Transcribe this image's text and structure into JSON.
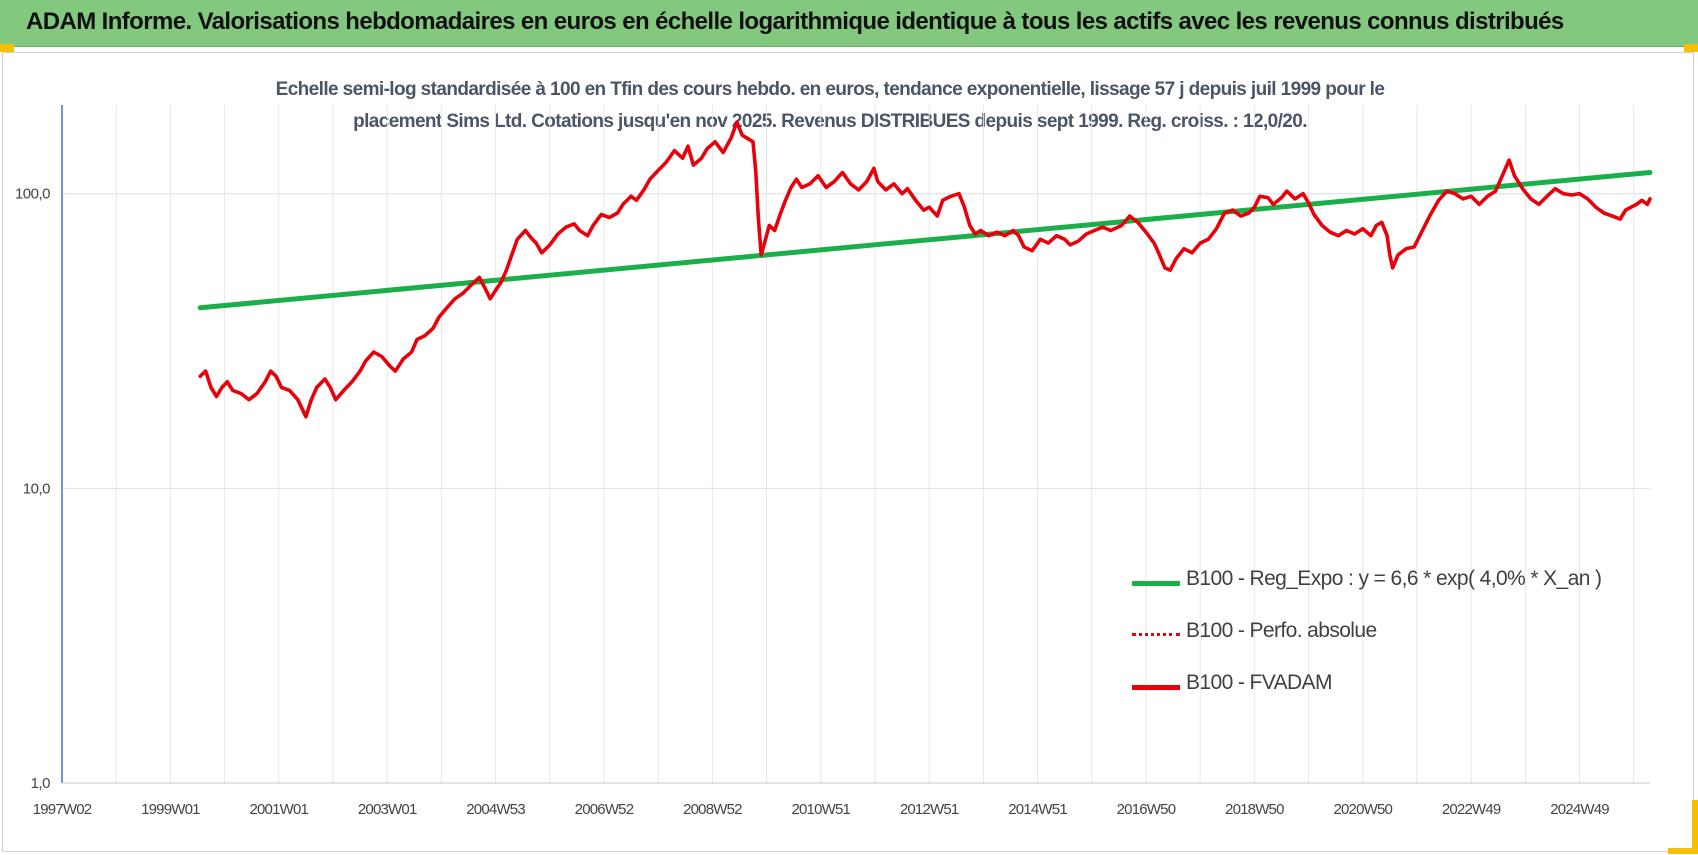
{
  "header": {
    "title": "ADAM Informe. Valorisations hebdomadaires en euros en échelle logarithmique identique à tous les actifs avec les revenus connus distribués"
  },
  "chart_data": {
    "type": "line",
    "title_line1": "Echelle semi-log standardisée à 100 en Tfin des cours hebdo. en euros, tendance exponentielle, lissage 57 j depuis juil 1999 pour le",
    "title_line2": "placement Sims Ltd. Cotations jusqu'en nov 2025. Revenus DISTRIBUES depuis sept 1999. Reg. croiss. : 12,0/20.",
    "y_scale": "log",
    "ylim": [
      1,
      200
    ],
    "xlim": [
      1997.0,
      2026.3
    ],
    "grid": true,
    "legend_position": "right",
    "y_ticks": [
      {
        "value": 1,
        "label": "1,0"
      },
      {
        "value": 10,
        "label": "10,0"
      },
      {
        "value": 100,
        "label": "100,0"
      }
    ],
    "x_ticks": [
      {
        "value": 1997.0,
        "label": "1997W02"
      },
      {
        "value": 1999.0,
        "label": "1999W01"
      },
      {
        "value": 2001.0,
        "label": "2001W01"
      },
      {
        "value": 2003.0,
        "label": "2003W01"
      },
      {
        "value": 2005.0,
        "label": "2004W53"
      },
      {
        "value": 2007.0,
        "label": "2006W52"
      },
      {
        "value": 2009.0,
        "label": "2008W52"
      },
      {
        "value": 2011.0,
        "label": "2010W51"
      },
      {
        "value": 2013.0,
        "label": "2012W51"
      },
      {
        "value": 2015.0,
        "label": "2014W51"
      },
      {
        "value": 2017.0,
        "label": "2016W50"
      },
      {
        "value": 2019.0,
        "label": "2018W50"
      },
      {
        "value": 2021.0,
        "label": "2020W50"
      },
      {
        "value": 2023.0,
        "label": "2022W49"
      },
      {
        "value": 2025.0,
        "label": "2024W49"
      }
    ],
    "series": [
      {
        "name": "B100 - Reg_Expo : y = 6,6 * exp( 4,0% *  X_an )",
        "color": "#1aaf4a",
        "style": "solid",
        "points": [
          [
            1999.55,
            41
          ],
          [
            2026.3,
            118
          ]
        ]
      },
      {
        "name": "B100 - Perfo. absolue",
        "color": "#e8000a",
        "style": "dotted",
        "points": []
      },
      {
        "name": "B100 - FVADAM",
        "color": "#e8000a",
        "style": "solid",
        "points": [
          [
            1999.55,
            24
          ],
          [
            1999.65,
            25
          ],
          [
            1999.75,
            22
          ],
          [
            1999.85,
            20.5
          ],
          [
            1999.95,
            22
          ],
          [
            2000.05,
            23
          ],
          [
            2000.15,
            21.5
          ],
          [
            2000.3,
            21
          ],
          [
            2000.45,
            20
          ],
          [
            2000.6,
            21
          ],
          [
            2000.75,
            23
          ],
          [
            2000.85,
            25
          ],
          [
            2000.95,
            24
          ],
          [
            2001.05,
            22
          ],
          [
            2001.2,
            21.5
          ],
          [
            2001.35,
            20
          ],
          [
            2001.5,
            17.5
          ],
          [
            2001.6,
            20
          ],
          [
            2001.7,
            22
          ],
          [
            2001.85,
            23.5
          ],
          [
            2001.95,
            22
          ],
          [
            2002.05,
            20
          ],
          [
            2002.2,
            21.5
          ],
          [
            2002.35,
            23
          ],
          [
            2002.5,
            25
          ],
          [
            2002.6,
            27
          ],
          [
            2002.75,
            29
          ],
          [
            2002.9,
            28
          ],
          [
            2003.05,
            26
          ],
          [
            2003.15,
            25
          ],
          [
            2003.3,
            27.5
          ],
          [
            2003.45,
            29
          ],
          [
            2003.55,
            32
          ],
          [
            2003.7,
            33
          ],
          [
            2003.85,
            35
          ],
          [
            2003.95,
            38
          ],
          [
            2004.1,
            41
          ],
          [
            2004.25,
            44
          ],
          [
            2004.4,
            46
          ],
          [
            2004.55,
            49
          ],
          [
            2004.7,
            52
          ],
          [
            2004.8,
            48
          ],
          [
            2004.9,
            44
          ],
          [
            2005.0,
            47
          ],
          [
            2005.1,
            50
          ],
          [
            2005.2,
            55
          ],
          [
            2005.3,
            62
          ],
          [
            2005.4,
            70
          ],
          [
            2005.55,
            75
          ],
          [
            2005.65,
            71
          ],
          [
            2005.75,
            68
          ],
          [
            2005.85,
            63
          ],
          [
            2006.0,
            67
          ],
          [
            2006.15,
            73
          ],
          [
            2006.3,
            77
          ],
          [
            2006.45,
            79
          ],
          [
            2006.55,
            75
          ],
          [
            2006.7,
            72
          ],
          [
            2006.8,
            78
          ],
          [
            2006.95,
            85
          ],
          [
            2007.1,
            83
          ],
          [
            2007.25,
            86
          ],
          [
            2007.35,
            92
          ],
          [
            2007.5,
            98
          ],
          [
            2007.6,
            95
          ],
          [
            2007.75,
            104
          ],
          [
            2007.85,
            112
          ],
          [
            2008.0,
            120
          ],
          [
            2008.15,
            128
          ],
          [
            2008.3,
            140
          ],
          [
            2008.45,
            132
          ],
          [
            2008.55,
            145
          ],
          [
            2008.65,
            125
          ],
          [
            2008.8,
            132
          ],
          [
            2008.9,
            142
          ],
          [
            2009.05,
            150
          ],
          [
            2009.2,
            138
          ],
          [
            2009.35,
            155
          ],
          [
            2009.45,
            175
          ],
          [
            2009.55,
            158
          ],
          [
            2009.75,
            150
          ],
          [
            2009.8,
            120
          ],
          [
            2009.85,
            82
          ],
          [
            2009.9,
            62
          ],
          [
            2009.98,
            70
          ],
          [
            2010.05,
            78
          ],
          [
            2010.15,
            75
          ],
          [
            2010.25,
            85
          ],
          [
            2010.35,
            95
          ],
          [
            2010.45,
            105
          ],
          [
            2010.55,
            112
          ],
          [
            2010.65,
            105
          ],
          [
            2010.8,
            108
          ],
          [
            2010.95,
            115
          ],
          [
            2011.1,
            105
          ],
          [
            2011.25,
            110
          ],
          [
            2011.4,
            118
          ],
          [
            2011.55,
            108
          ],
          [
            2011.7,
            103
          ],
          [
            2011.85,
            110
          ],
          [
            2011.98,
            122
          ],
          [
            2012.05,
            110
          ],
          [
            2012.2,
            103
          ],
          [
            2012.35,
            108
          ],
          [
            2012.5,
            100
          ],
          [
            2012.6,
            104
          ],
          [
            2012.75,
            95
          ],
          [
            2012.9,
            88
          ],
          [
            2013.0,
            90
          ],
          [
            2013.15,
            84
          ],
          [
            2013.25,
            95
          ],
          [
            2013.4,
            98
          ],
          [
            2013.55,
            100
          ],
          [
            2013.65,
            90
          ],
          [
            2013.75,
            78
          ],
          [
            2013.85,
            73
          ],
          [
            2013.95,
            75
          ],
          [
            2014.1,
            72
          ],
          [
            2014.25,
            74
          ],
          [
            2014.4,
            72
          ],
          [
            2014.55,
            75
          ],
          [
            2014.65,
            72
          ],
          [
            2014.75,
            66
          ],
          [
            2014.9,
            64
          ],
          [
            2015.05,
            70
          ],
          [
            2015.2,
            68
          ],
          [
            2015.35,
            72
          ],
          [
            2015.5,
            70
          ],
          [
            2015.6,
            67
          ],
          [
            2015.75,
            69
          ],
          [
            2015.9,
            73
          ],
          [
            2016.05,
            75
          ],
          [
            2016.2,
            77
          ],
          [
            2016.35,
            75
          ],
          [
            2016.55,
            78
          ],
          [
            2016.7,
            84
          ],
          [
            2016.85,
            80
          ],
          [
            2017.0,
            74
          ],
          [
            2017.15,
            68
          ],
          [
            2017.25,
            62
          ],
          [
            2017.35,
            56
          ],
          [
            2017.45,
            55
          ],
          [
            2017.55,
            60
          ],
          [
            2017.7,
            65
          ],
          [
            2017.85,
            63
          ],
          [
            2018.0,
            68
          ],
          [
            2018.15,
            70
          ],
          [
            2018.3,
            76
          ],
          [
            2018.45,
            86
          ],
          [
            2018.6,
            88
          ],
          [
            2018.75,
            84
          ],
          [
            2018.9,
            86
          ],
          [
            2019.0,
            90
          ],
          [
            2019.1,
            98
          ],
          [
            2019.25,
            97
          ],
          [
            2019.35,
            92
          ],
          [
            2019.5,
            97
          ],
          [
            2019.6,
            102
          ],
          [
            2019.75,
            96
          ],
          [
            2019.9,
            100
          ],
          [
            2020.0,
            93
          ],
          [
            2020.1,
            85
          ],
          [
            2020.25,
            78
          ],
          [
            2020.4,
            74
          ],
          [
            2020.55,
            72
          ],
          [
            2020.7,
            75
          ],
          [
            2020.85,
            73
          ],
          [
            2021.0,
            76
          ],
          [
            2021.15,
            72
          ],
          [
            2021.25,
            78
          ],
          [
            2021.35,
            80
          ],
          [
            2021.45,
            72
          ],
          [
            2021.5,
            62
          ],
          [
            2021.55,
            56
          ],
          [
            2021.65,
            62
          ],
          [
            2021.8,
            65
          ],
          [
            2021.95,
            66
          ],
          [
            2022.1,
            75
          ],
          [
            2022.25,
            85
          ],
          [
            2022.4,
            95
          ],
          [
            2022.55,
            102
          ],
          [
            2022.7,
            100
          ],
          [
            2022.85,
            96
          ],
          [
            2023.0,
            98
          ],
          [
            2023.15,
            92
          ],
          [
            2023.3,
            98
          ],
          [
            2023.45,
            102
          ],
          [
            2023.6,
            118
          ],
          [
            2023.7,
            130
          ],
          [
            2023.8,
            115
          ],
          [
            2023.95,
            104
          ],
          [
            2024.1,
            96
          ],
          [
            2024.25,
            92
          ],
          [
            2024.4,
            98
          ],
          [
            2024.55,
            104
          ],
          [
            2024.7,
            100
          ],
          [
            2024.85,
            99
          ],
          [
            2025.0,
            100
          ],
          [
            2025.15,
            96
          ],
          [
            2025.3,
            90
          ],
          [
            2025.45,
            86
          ],
          [
            2025.6,
            84
          ],
          [
            2025.75,
            82
          ],
          [
            2025.85,
            88
          ],
          [
            2025.95,
            90
          ],
          [
            2026.05,
            92
          ],
          [
            2026.15,
            95
          ],
          [
            2026.25,
            92
          ],
          [
            2026.3,
            96
          ]
        ]
      }
    ]
  }
}
